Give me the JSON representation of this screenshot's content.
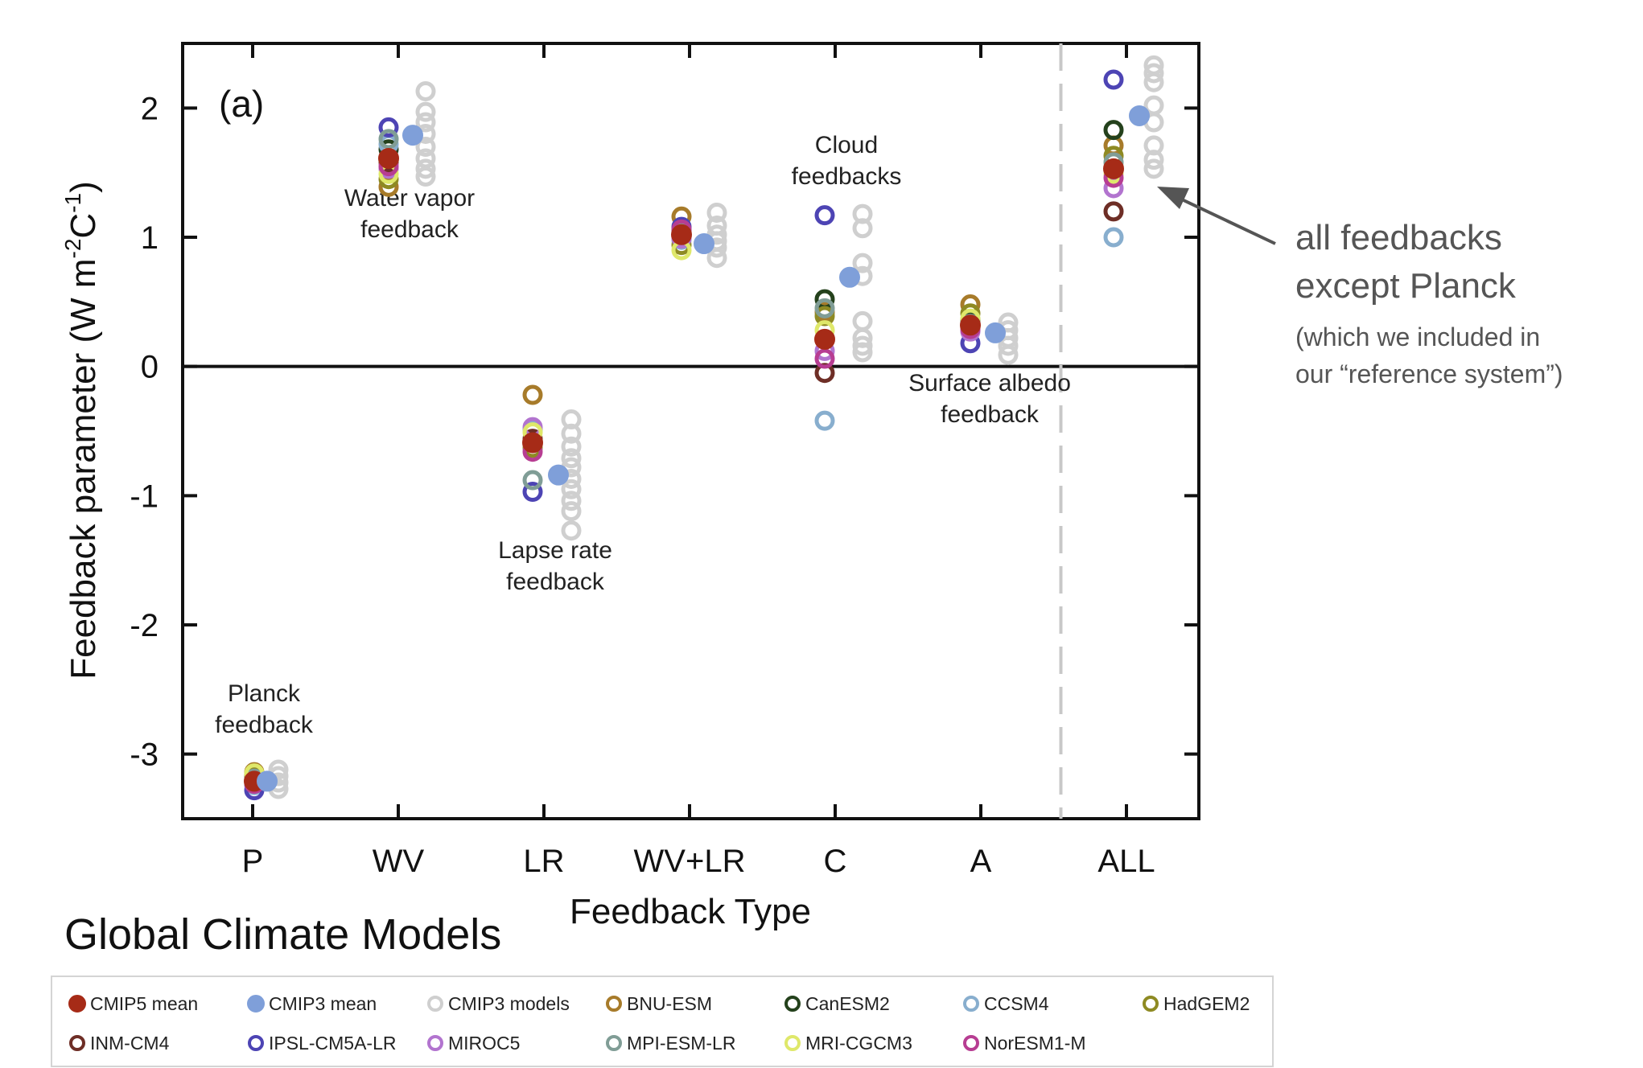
{
  "chart_data": {
    "type": "scatter",
    "panel_label": "(a)",
    "xlabel": "Feedback Type",
    "ylabel": "Feedback parameter (W m",
    "ylabel_sup1": "-2",
    "ylabel_mid": "C",
    "ylabel_sup2": "-1",
    "ylabel_end": ")",
    "categories": [
      "P",
      "WV",
      "LR",
      "WV+LR",
      "C",
      "A",
      "ALL"
    ],
    "ylim": [
      -3.5,
      2.5
    ],
    "yticks": [
      -3,
      -2,
      -1,
      0,
      1,
      2
    ],
    "grid": false,
    "group_labels": [
      {
        "category": "P",
        "lines": [
          "Planck",
          "feedback"
        ]
      },
      {
        "category": "WV",
        "lines": [
          "Water vapor",
          "feedback"
        ]
      },
      {
        "category": "LR",
        "lines": [
          "Lapse rate",
          "feedback"
        ]
      },
      {
        "category": "C",
        "lines": [
          "Cloud",
          "feedbacks"
        ]
      },
      {
        "category": "A",
        "lines": [
          "Surface albedo",
          "feedback"
        ]
      }
    ],
    "separator_after": "A",
    "series": [
      {
        "name": "CMIP5 mean",
        "color": "#a62b17",
        "filled": true,
        "values": [
          -3.21,
          1.61,
          -0.59,
          1.02,
          0.21,
          0.32,
          1.53
        ]
      },
      {
        "name": "CMIP3 mean",
        "color": "#7f9fd9",
        "filled": true,
        "values": [
          -3.21,
          1.79,
          -0.84,
          0.95,
          0.69,
          0.26,
          1.94
        ]
      },
      {
        "name": "CMIP3 models",
        "color": "#cfcfcf",
        "filled": false,
        "points": {
          "P": [
            -3.12,
            -3.17,
            -3.22,
            -3.27
          ],
          "WV": [
            2.13,
            1.97,
            1.89,
            1.8,
            1.7,
            1.61,
            1.53,
            1.47
          ],
          "LR": [
            -0.41,
            -0.52,
            -0.62,
            -0.71,
            -0.78,
            -0.87,
            -0.95,
            -1.04,
            -1.12,
            -1.27
          ],
          "WV+LR": [
            1.19,
            1.09,
            1.02,
            0.97,
            0.92,
            0.84
          ],
          "C": [
            1.18,
            1.07,
            0.8,
            0.7,
            0.35,
            0.22,
            0.16,
            0.11
          ],
          "A": [
            0.34,
            0.28,
            0.22,
            0.16,
            0.09
          ],
          "ALL": [
            2.33,
            2.27,
            2.2,
            2.02,
            1.89,
            1.71,
            1.6,
            1.53
          ]
        }
      },
      {
        "name": "BNU-ESM",
        "color": "#a77b2a",
        "filled": false,
        "values": [
          -3.14,
          1.39,
          -0.22,
          1.16,
          0.42,
          0.48,
          1.71
        ]
      },
      {
        "name": "CanESM2",
        "color": "#24411c",
        "filled": false,
        "values": [
          -3.18,
          1.68,
          -0.58,
          1.05,
          0.52,
          0.36,
          1.83
        ]
      },
      {
        "name": "CCSM4",
        "color": "#88aece",
        "filled": false,
        "values": [
          -3.24,
          1.72,
          -0.49,
          0.98,
          -0.42,
          0.3,
          1.0
        ]
      },
      {
        "name": "HadGEM2",
        "color": "#8e8a23",
        "filled": false,
        "values": [
          -3.16,
          1.45,
          -0.63,
          0.94,
          0.39,
          0.41,
          1.63
        ]
      },
      {
        "name": "INM-CM4",
        "color": "#6e2e26",
        "filled": false,
        "values": [
          -3.2,
          1.58,
          -0.56,
          1.01,
          -0.05,
          0.31,
          1.2
        ]
      },
      {
        "name": "IPSL-CM5A-LR",
        "color": "#4d44b4",
        "filled": false,
        "values": [
          -3.28,
          1.85,
          -0.97,
          1.08,
          1.17,
          0.18,
          2.22
        ]
      },
      {
        "name": "MIROC5",
        "color": "#b274cf",
        "filled": false,
        "values": [
          -3.22,
          1.53,
          -0.47,
          0.99,
          0.12,
          0.27,
          1.38
        ]
      },
      {
        "name": "MPI-ESM-LR",
        "color": "#809d96",
        "filled": false,
        "values": [
          -3.19,
          1.76,
          -0.88,
          1.03,
          0.45,
          0.33,
          1.58
        ]
      },
      {
        "name": "MRI-CGCM3",
        "color": "#dfe86a",
        "filled": false,
        "values": [
          -3.15,
          1.49,
          -0.51,
          0.9,
          0.28,
          0.37,
          1.49
        ]
      },
      {
        "name": "NorESM1-M",
        "color": "#b73d92",
        "filled": false,
        "values": [
          -3.23,
          1.55,
          -0.66,
          1.06,
          0.06,
          0.29,
          1.46
        ]
      }
    ],
    "annotation": {
      "line1": "all feedbacks",
      "line2": "except Planck",
      "line3": "(which we included in",
      "line4": "our “reference system”)"
    }
  },
  "legend": {
    "title": "Global Climate Models"
  }
}
